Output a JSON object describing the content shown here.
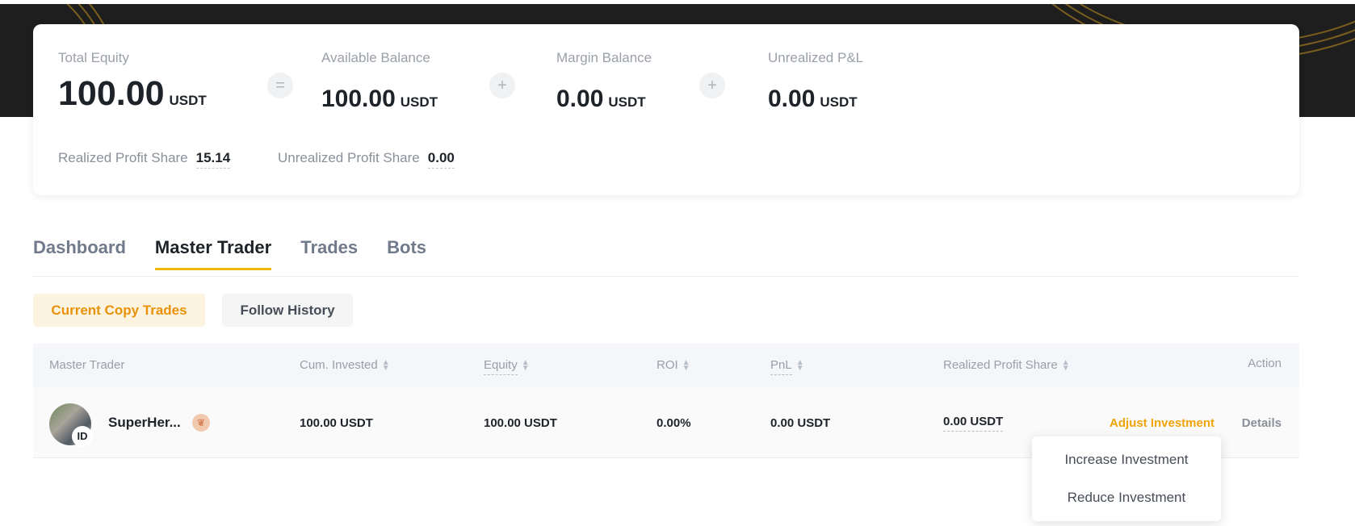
{
  "summary": {
    "total_equity": {
      "label": "Total Equity",
      "value": "100.00",
      "unit": "USDT"
    },
    "available_balance": {
      "label": "Available Balance",
      "value": "100.00",
      "unit": "USDT"
    },
    "margin_balance": {
      "label": "Margin Balance",
      "value": "0.00",
      "unit": "USDT"
    },
    "unrealized_pnl": {
      "label": "Unrealized P&L",
      "value": "0.00",
      "unit": "USDT"
    },
    "op_equals": "=",
    "op_plus": "+",
    "realized_profit_share": {
      "label": "Realized Profit Share",
      "value": "15.14"
    },
    "unrealized_profit_share": {
      "label": "Unrealized Profit Share",
      "value": "0.00"
    }
  },
  "tabs": [
    {
      "label": "Dashboard"
    },
    {
      "label": "Master Trader",
      "active": true
    },
    {
      "label": "Trades"
    },
    {
      "label": "Bots"
    }
  ],
  "subtabs": {
    "current": "Current Copy Trades",
    "history": "Follow History"
  },
  "table": {
    "headers": [
      "Master Trader",
      "Cum. Invested",
      "Equity",
      "ROI",
      "PnL",
      "Realized Profit Share",
      "Action"
    ],
    "rows": [
      {
        "name": "SuperHer...",
        "avatar_badge": "ID",
        "cum_invested": "100.00 USDT",
        "equity": "100.00 USDT",
        "roi": "0.00%",
        "pnl": "0.00 USDT",
        "realized_profit_share": "0.00 USDT",
        "adjust": "Adjust Investment",
        "details": "Details"
      }
    ]
  },
  "dropdown": {
    "items": [
      "Increase Investment",
      "Reduce Investment"
    ]
  },
  "colors": {
    "accent": "#f0b90b",
    "accent_text": "#f0a30a",
    "current_tab_bg": "#fdf3e1",
    "banner": "#1e1e1e"
  }
}
